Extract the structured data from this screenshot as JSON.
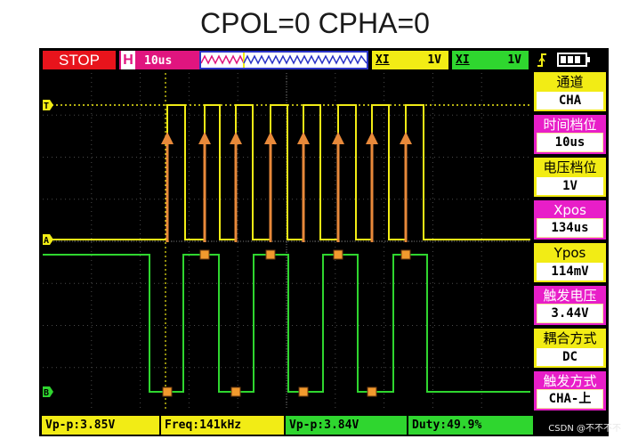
{
  "title": "CPOL=0 CPHA=0",
  "top_bar": {
    "stop_label": "STOP",
    "h_letter": "H",
    "timebase": "10us",
    "ch1_coupling": "XI",
    "ch1_volts": "1V",
    "ch2_coupling": "XI",
    "ch2_volts": "1V"
  },
  "channel_markers": {
    "trigger": "T",
    "ch_a": "A",
    "ch_b": "B"
  },
  "menu": [
    {
      "label": "通道",
      "value": "CHA"
    },
    {
      "label": "时间档位",
      "value": "10us"
    },
    {
      "label": "电压档位",
      "value": "1V"
    },
    {
      "label": "Xpos",
      "value": "134us"
    },
    {
      "label": "Ypos",
      "value": "114mV"
    },
    {
      "label": "触发电压",
      "value": "3.44V"
    },
    {
      "label": "耦合方式",
      "value": "DC"
    },
    {
      "label": "触发方式",
      "value": "CHA-上"
    }
  ],
  "bottom": {
    "ch1_vpp": "Vp-p:3.85V",
    "ch1_freq": "Freq:141kHz",
    "ch2_vpp": "Vp-p:3.84V",
    "ch2_duty": "Duty:49.9%"
  },
  "watermark": "CSDN @不不不不",
  "colors": {
    "clock_trace": "#f2ec15",
    "data_trace": "#2fd62f",
    "arrow": "#e8893a",
    "sample_marker": "#f29a2e",
    "stop": "#e8141c",
    "magenta": "#e0157f"
  },
  "icons": {
    "trigger_edge": "rising-edge-icon",
    "battery": "battery-icon",
    "waveform_overview": "waveform-overview-icon"
  }
}
